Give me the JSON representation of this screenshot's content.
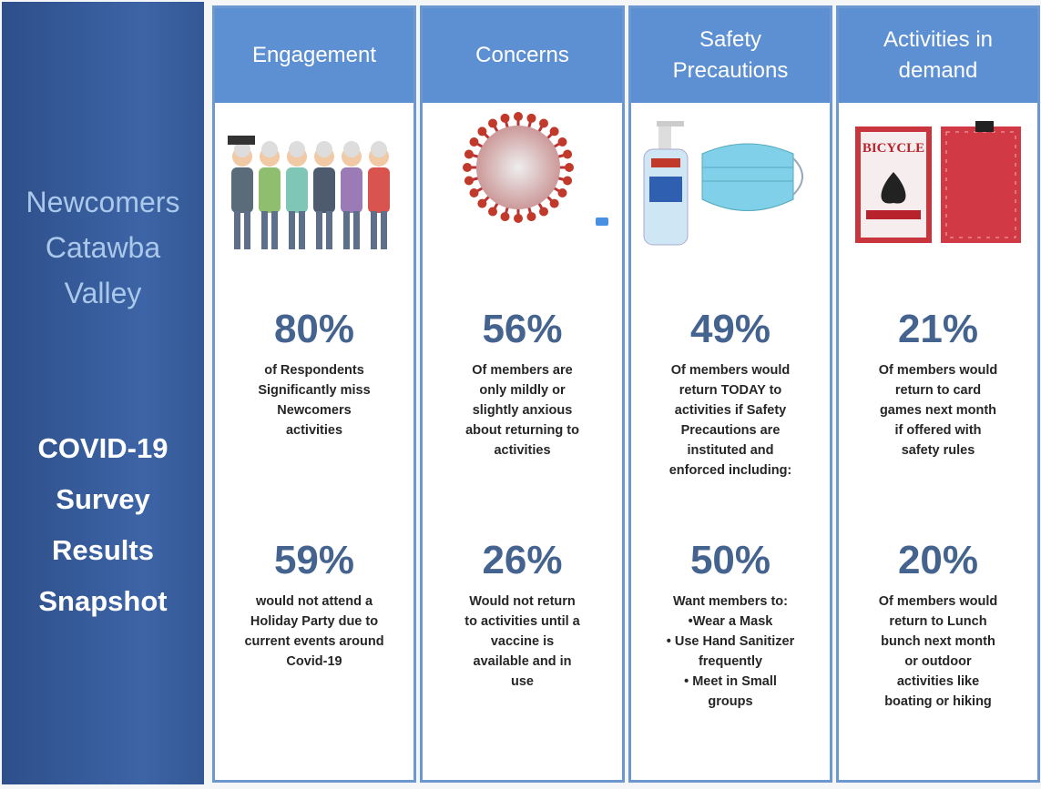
{
  "sidebar": {
    "org": [
      "Newcomers",
      "Catawba",
      "Valley"
    ],
    "title": [
      "COVID-19",
      "Survey",
      "Results",
      "Snapshot"
    ]
  },
  "columns": [
    {
      "header": [
        "Engagement"
      ],
      "stats": [
        {
          "value": "80%",
          "lines": [
            "of Respondents",
            "Significantly miss",
            "Newcomers",
            "activities"
          ]
        },
        {
          "value": "59%",
          "lines": [
            "would not attend a",
            "Holiday Party due to",
            "current events around",
            "Covid-19"
          ]
        }
      ]
    },
    {
      "header": [
        "Concerns"
      ],
      "stats": [
        {
          "value": "56%",
          "lines": [
            "Of members are",
            "only mildly or",
            "slightly anxious",
            "about returning to",
            "activities"
          ]
        },
        {
          "value": "26%",
          "lines": [
            "Would not return",
            "to activities until a",
            "vaccine is",
            "available and in",
            "use"
          ]
        }
      ]
    },
    {
      "header": [
        "Safety",
        "Precautions"
      ],
      "stats": [
        {
          "value": "49%",
          "lines": [
            "Of members would",
            "return TODAY to",
            "activities if Safety",
            "Precautions are",
            "instituted and",
            "enforced including:"
          ]
        },
        {
          "value": "50%",
          "lines": [
            "Want members to:",
            "•Wear a  Mask",
            "• Use Hand Sanitizer",
            "frequently",
            "• Meet in Small",
            "groups"
          ]
        }
      ]
    },
    {
      "header": [
        "Activities in",
        "demand"
      ],
      "stats": [
        {
          "value": "21%",
          "lines": [
            "Of members would",
            "return to card",
            "games next month",
            "if offered with",
            "safety rules"
          ]
        },
        {
          "value": "20%",
          "lines": [
            "Of members would",
            "return to  Lunch",
            "bunch next month",
            "or outdoor",
            "activities like",
            "boating or hiking"
          ]
        }
      ]
    }
  ],
  "card_brand": "BICYCLE"
}
